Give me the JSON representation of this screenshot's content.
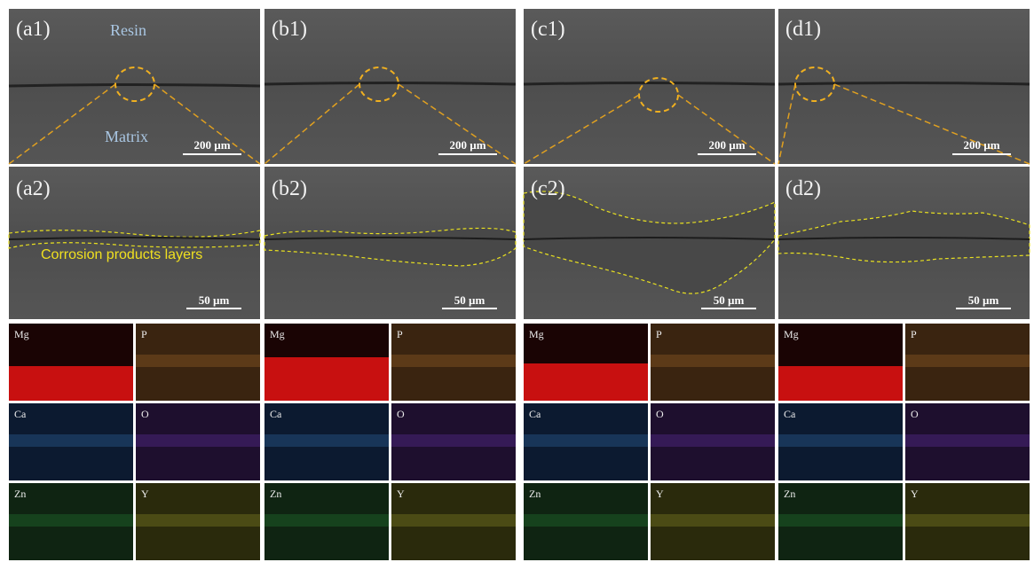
{
  "columns": [
    {
      "top": {
        "label": "(a1)",
        "scale_bar": "200 µm"
      },
      "zoom": {
        "label": "(a2)",
        "scale_bar": "50 µm"
      },
      "maps": [
        "Mg",
        "P",
        "Ca",
        "O",
        "Zn",
        "Y"
      ]
    },
    {
      "top": {
        "label": "(b1)",
        "scale_bar": "200 µm"
      },
      "zoom": {
        "label": "(b2)",
        "scale_bar": "50 µm"
      },
      "maps": [
        "Mg",
        "P",
        "Ca",
        "O",
        "Zn",
        "Y"
      ]
    },
    {
      "top": {
        "label": "(c1)",
        "scale_bar": "200 µm"
      },
      "zoom": {
        "label": "(c2)",
        "scale_bar": "50 µm"
      },
      "maps": [
        "Mg",
        "P",
        "Ca",
        "O",
        "Zn",
        "Y"
      ]
    },
    {
      "top": {
        "label": "(d1)",
        "scale_bar": "200 µm"
      },
      "zoom": {
        "label": "(d2)",
        "scale_bar": "50 µm"
      },
      "maps": [
        "Mg",
        "P",
        "Ca",
        "O",
        "Zn",
        "Y"
      ]
    }
  ],
  "annotations": {
    "resin": "Resin",
    "matrix": "Matrix",
    "layer": "Corrosion products layers"
  }
}
